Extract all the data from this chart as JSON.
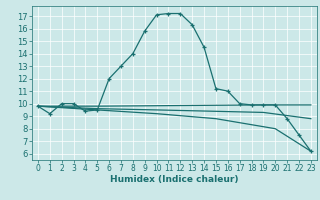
{
  "xlabel": "Humidex (Indice chaleur)",
  "bg_color": "#cce8e8",
  "line_color": "#1a7070",
  "grid_color": "#ffffff",
  "xlim": [
    -0.5,
    23.5
  ],
  "ylim": [
    5.5,
    17.8
  ],
  "yticks": [
    6,
    7,
    8,
    9,
    10,
    11,
    12,
    13,
    14,
    15,
    16,
    17
  ],
  "xticks": [
    0,
    1,
    2,
    3,
    4,
    5,
    6,
    7,
    8,
    9,
    10,
    11,
    12,
    13,
    14,
    15,
    16,
    17,
    18,
    19,
    20,
    21,
    22,
    23
  ],
  "lines": [
    {
      "x": [
        0,
        1,
        2,
        3,
        4,
        5,
        6,
        7,
        8,
        9,
        10,
        11,
        12,
        13,
        14,
        15,
        16,
        17,
        18,
        19,
        20,
        21,
        22,
        23
      ],
      "y": [
        9.8,
        9.2,
        10.0,
        10.0,
        9.4,
        9.5,
        12.0,
        13.0,
        14.0,
        15.8,
        17.1,
        17.2,
        17.2,
        16.3,
        14.5,
        11.2,
        11.0,
        10.0,
        9.9,
        9.9,
        9.9,
        8.8,
        7.5,
        6.2
      ],
      "marker": true
    },
    {
      "x": [
        0,
        5,
        19,
        23
      ],
      "y": [
        9.8,
        9.8,
        9.9,
        9.9
      ],
      "marker": false
    },
    {
      "x": [
        0,
        5,
        10,
        19,
        23
      ],
      "y": [
        9.8,
        9.6,
        9.5,
        9.3,
        8.8
      ],
      "marker": false
    },
    {
      "x": [
        0,
        5,
        10,
        15,
        20,
        23
      ],
      "y": [
        9.8,
        9.5,
        9.2,
        8.8,
        8.0,
        6.2
      ],
      "marker": false
    }
  ],
  "tick_color": "#1a7070",
  "tick_fontsize": 5.5,
  "xlabel_fontsize": 6.5,
  "grid_linewidth": 0.5,
  "line_linewidth": 0.9
}
